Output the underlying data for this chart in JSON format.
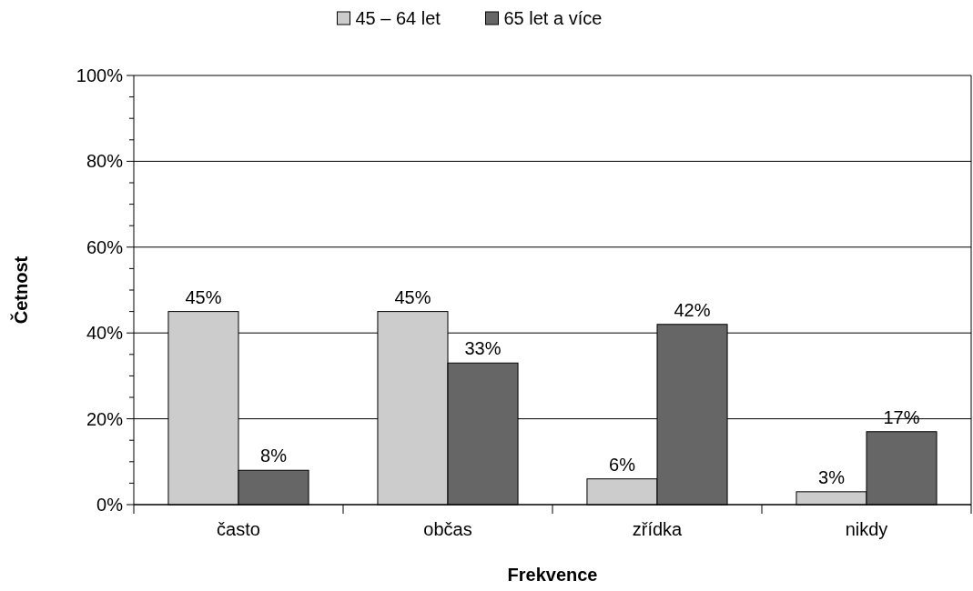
{
  "chart_data": {
    "type": "bar",
    "xlabel": "Frekvence",
    "ylabel": "Četnost",
    "categories": [
      "často",
      "občas",
      "zřídka",
      "nikdy"
    ],
    "series": [
      {
        "name": "45 – 64 let",
        "color": "#cccccc",
        "values": [
          45,
          45,
          6,
          3
        ],
        "value_labels": [
          "45%",
          "45%",
          "6%",
          "3%"
        ]
      },
      {
        "name": "65 let a více",
        "color": "#666666",
        "values": [
          8,
          33,
          42,
          17
        ],
        "value_labels": [
          "8%",
          "33%",
          "42%",
          "17%"
        ]
      }
    ],
    "ylim": [
      0,
      100
    ],
    "yticks": [
      {
        "value": 0,
        "label": "0%"
      },
      {
        "value": 5,
        "label": null
      },
      {
        "value": 10,
        "label": null
      },
      {
        "value": 15,
        "label": null
      },
      {
        "value": 20,
        "label": "20%"
      },
      {
        "value": 25,
        "label": null
      },
      {
        "value": 30,
        "label": null
      },
      {
        "value": 35,
        "label": null
      },
      {
        "value": 40,
        "label": "40%"
      },
      {
        "value": 45,
        "label": null
      },
      {
        "value": 50,
        "label": null
      },
      {
        "value": 55,
        "label": null
      },
      {
        "value": 60,
        "label": "60%"
      },
      {
        "value": 65,
        "label": null
      },
      {
        "value": 70,
        "label": null
      },
      {
        "value": 75,
        "label": null
      },
      {
        "value": 80,
        "label": "80%"
      },
      {
        "value": 85,
        "label": null
      },
      {
        "value": 90,
        "label": null
      },
      {
        "value": 95,
        "label": null
      },
      {
        "value": 100,
        "label": "100%"
      }
    ],
    "grid": "y",
    "legend": "top"
  }
}
